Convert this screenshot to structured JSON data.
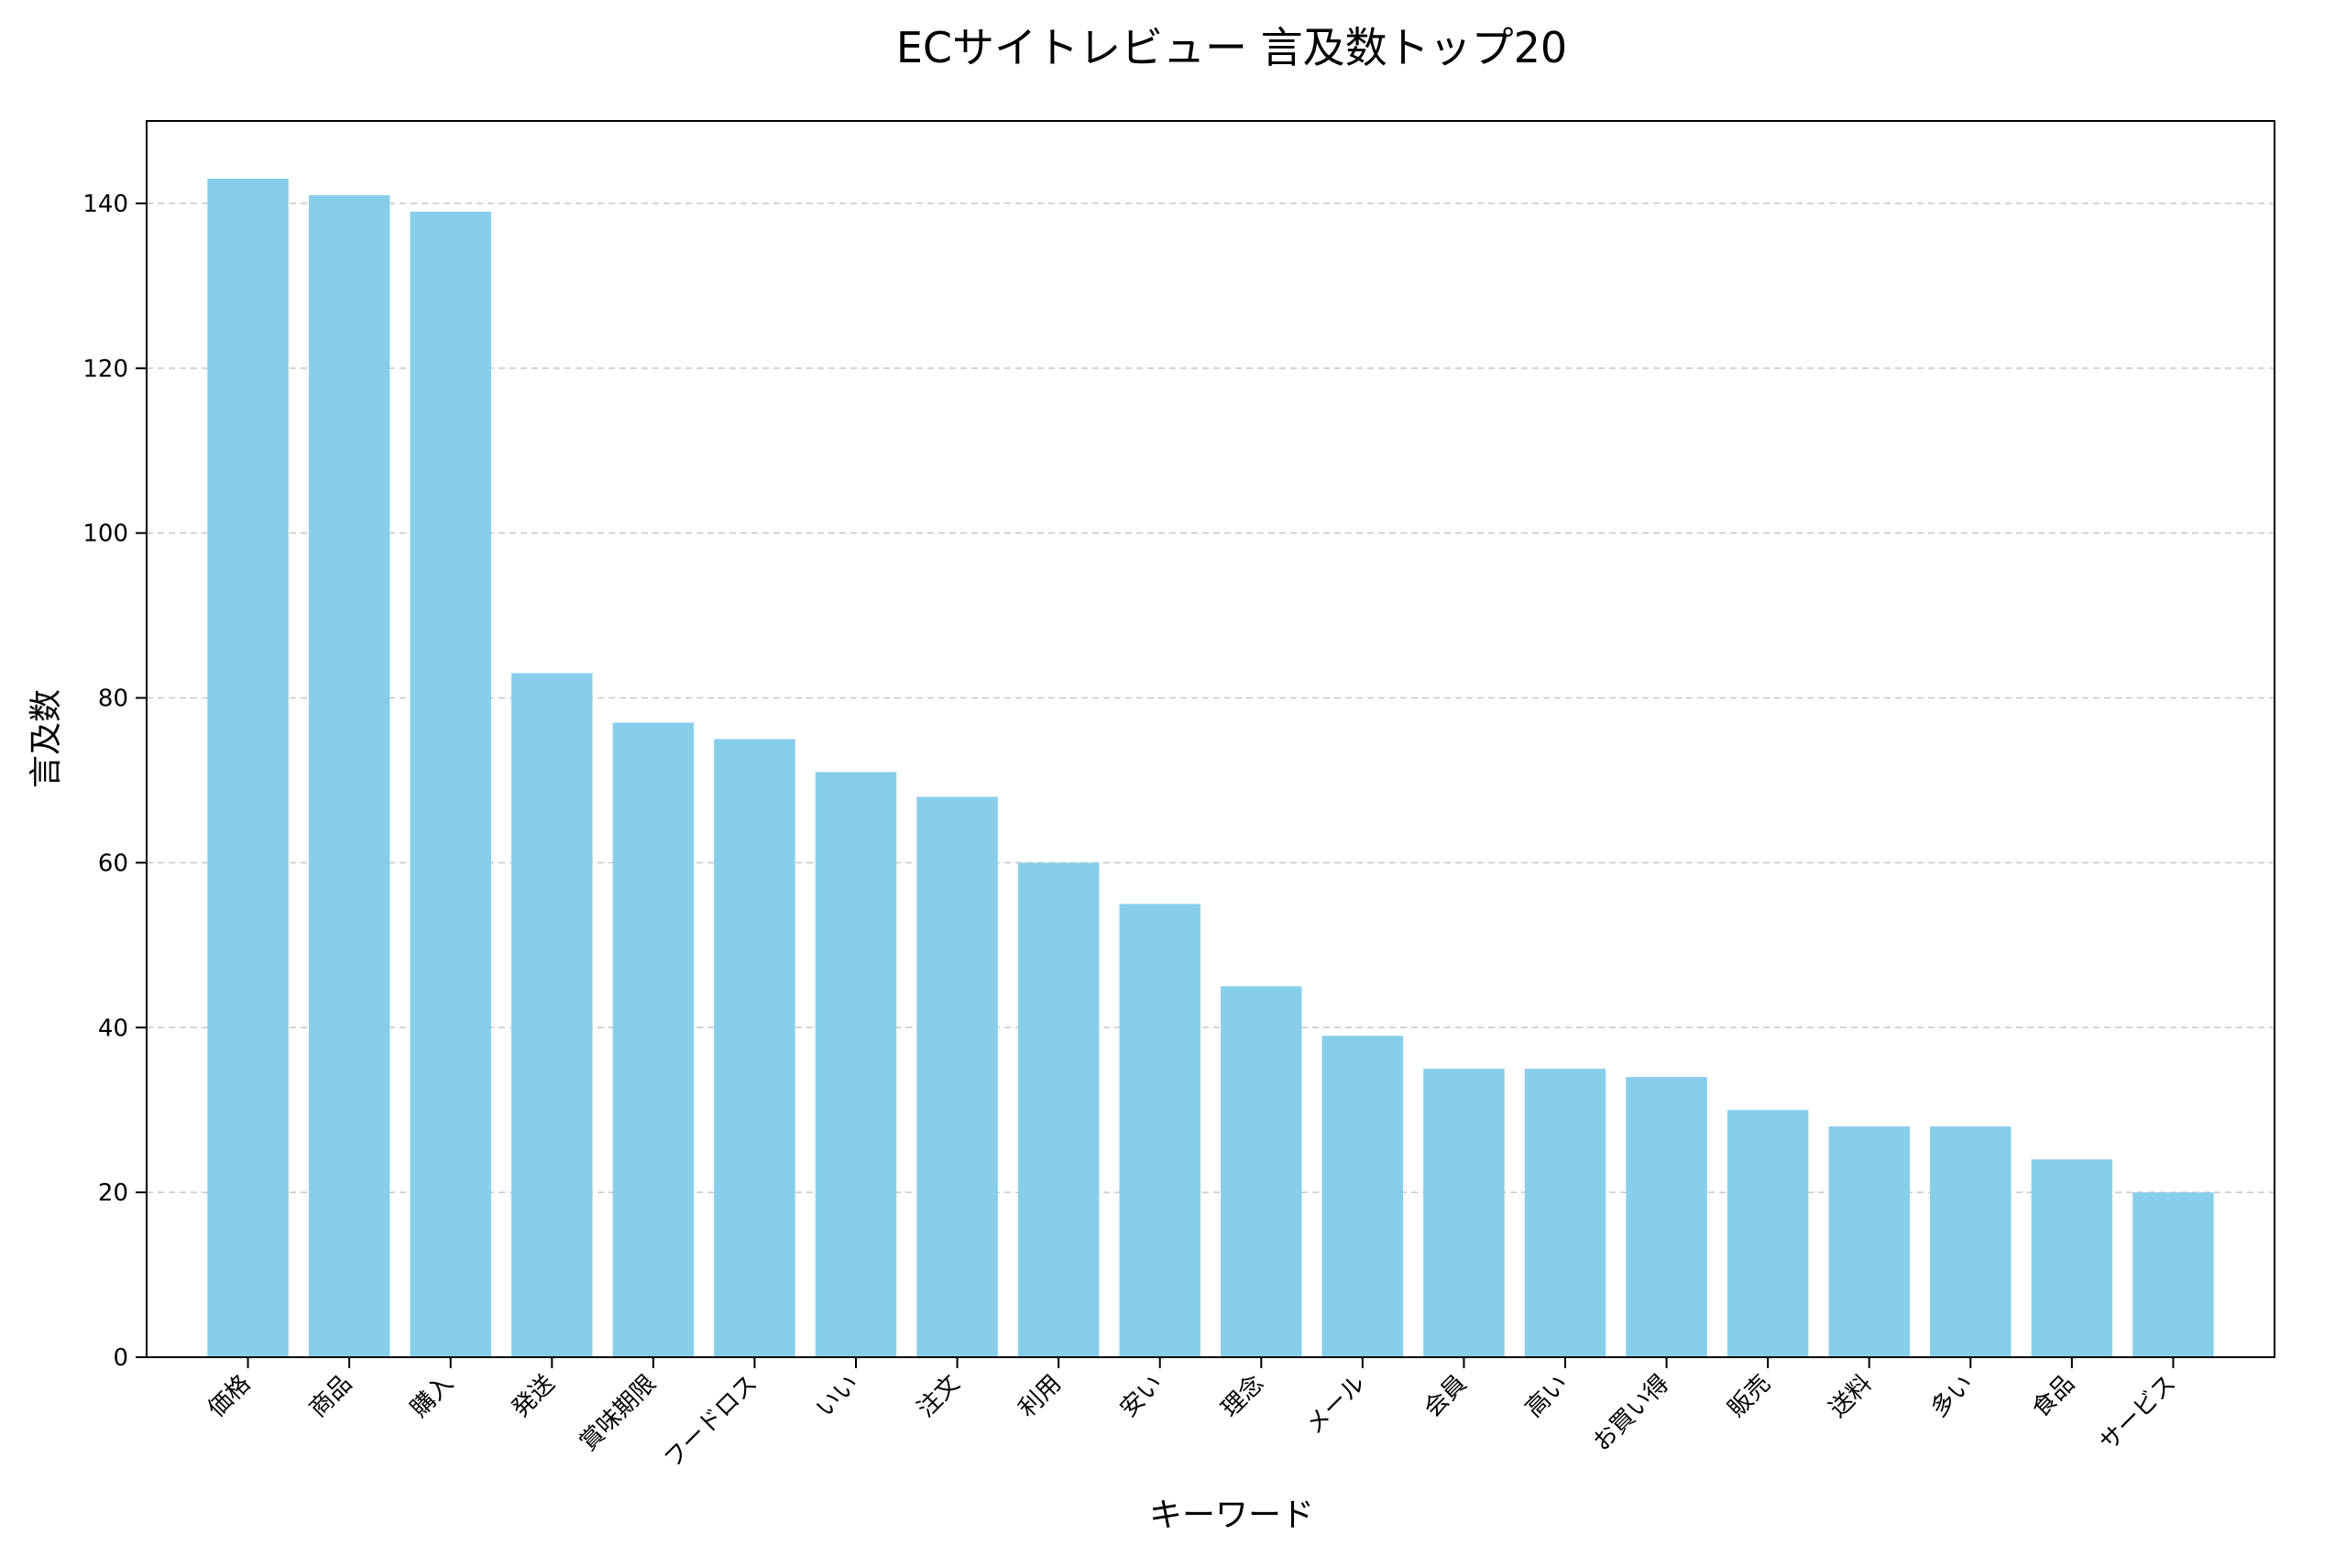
{
  "chart_data": {
    "type": "bar",
    "title": "ECサイトレビュー 言及数トップ20",
    "xlabel": "キーワード",
    "ylabel": "言及数",
    "categories": [
      "価格",
      "商品",
      "購入",
      "発送",
      "賞味期限",
      "フードロス",
      "いい",
      "注文",
      "利用",
      "安い",
      "理念",
      "メール",
      "会員",
      "高い",
      "お買い得",
      "販売",
      "送料",
      "多い",
      "食品",
      "サービス"
    ],
    "values": [
      143,
      141,
      139,
      83,
      77,
      75,
      71,
      68,
      60,
      55,
      45,
      39,
      35,
      35,
      34,
      30,
      28,
      28,
      24,
      20
    ],
    "ylim": [
      0,
      150
    ],
    "yticks": [
      0,
      20,
      40,
      60,
      80,
      100,
      120,
      140
    ],
    "grid": "y-dashed",
    "bar_color": "#87CEEB"
  }
}
